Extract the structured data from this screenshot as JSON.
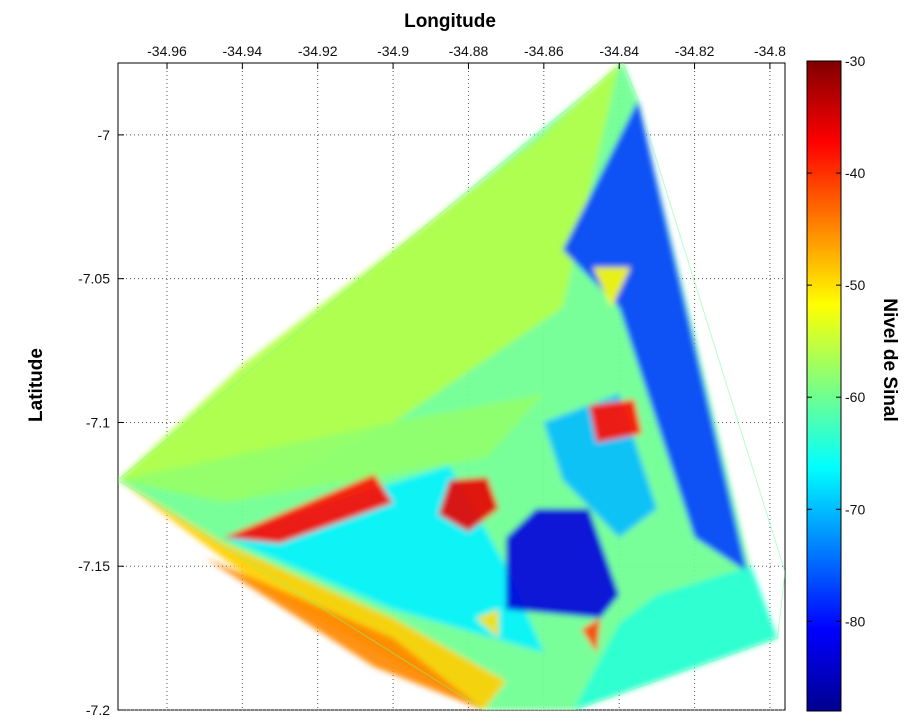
{
  "chart_data": {
    "type": "heatmap",
    "title": "",
    "xlabel": "Longitude",
    "ylabel": "Latitude",
    "colorbar_label": "Nivel de Sinal",
    "xlim": [
      -34.973,
      -34.796
    ],
    "ylim": [
      -7.2,
      -6.975
    ],
    "xticks": [
      -34.96,
      -34.94,
      -34.92,
      -34.9,
      -34.88,
      -34.86,
      -34.84,
      -34.82,
      -34.8
    ],
    "xtick_labels": [
      "-34.96",
      "-34.94",
      "-34.92",
      "-34.9",
      "-34.88",
      "-34.86",
      "-34.84",
      "-34.82",
      "-34.8"
    ],
    "yticks": [
      -7.0,
      -7.05,
      -7.1,
      -7.15,
      -7.2
    ],
    "ytick_labels": [
      "-7",
      "-7.05",
      "-7.1",
      "-7.15",
      "-7.2"
    ],
    "colorbar_range": [
      -88,
      -30
    ],
    "colorbar_ticks": [
      -30,
      -40,
      -50,
      -60,
      -70,
      -80
    ],
    "colorbar_tick_labels": [
      "-30",
      "-40",
      "-50",
      "-60",
      "-70",
      "-80"
    ],
    "colormap": "jet",
    "grid": true,
    "outline": [
      [
        -34.973,
        -7.12
      ],
      [
        -34.839,
        -6.975
      ],
      [
        -34.835,
        -6.988
      ],
      [
        -34.796,
        -7.152
      ],
      [
        -34.798,
        -7.175
      ],
      [
        -34.852,
        -7.2
      ],
      [
        -34.876,
        -7.2
      ]
    ],
    "regions": [
      {
        "points": [
          [
            -34.973,
            -7.12
          ],
          [
            -34.839,
            -6.975
          ],
          [
            -34.835,
            -6.988
          ],
          [
            -34.805,
            -7.152
          ],
          [
            -34.798,
            -7.175
          ],
          [
            -34.852,
            -7.2
          ],
          [
            -34.876,
            -7.2
          ]
        ],
        "value": -60
      },
      {
        "points": [
          [
            -34.973,
            -7.12
          ],
          [
            -34.94,
            -7.08
          ],
          [
            -34.9,
            -7.04
          ],
          [
            -34.86,
            -7.0
          ],
          [
            -34.84,
            -6.975
          ],
          [
            -34.855,
            -7.06
          ],
          [
            -34.9,
            -7.1
          ],
          [
            -34.94,
            -7.127
          ]
        ],
        "value": -56
      },
      {
        "points": [
          [
            -34.973,
            -7.12
          ],
          [
            -34.945,
            -7.142
          ],
          [
            -34.9,
            -7.168
          ],
          [
            -34.87,
            -7.19
          ],
          [
            -34.876,
            -7.2
          ],
          [
            -34.935,
            -7.157
          ]
        ],
        "value": -49
      },
      {
        "points": [
          [
            -34.95,
            -7.147
          ],
          [
            -34.9,
            -7.175
          ],
          [
            -34.876,
            -7.2
          ],
          [
            -34.905,
            -7.185
          ]
        ],
        "value": -45
      },
      {
        "points": [
          [
            -34.973,
            -7.12
          ],
          [
            -34.9,
            -7.1
          ],
          [
            -34.86,
            -7.09
          ],
          [
            -34.875,
            -7.112
          ],
          [
            -34.945,
            -7.128
          ]
        ],
        "value": -58
      },
      {
        "points": [
          [
            -34.945,
            -7.14
          ],
          [
            -34.905,
            -7.123
          ],
          [
            -34.885,
            -7.115
          ],
          [
            -34.87,
            -7.15
          ],
          [
            -34.86,
            -7.18
          ],
          [
            -34.9,
            -7.165
          ]
        ],
        "value": -67
      },
      {
        "points": [
          [
            -34.945,
            -7.14
          ],
          [
            -34.905,
            -7.118
          ],
          [
            -34.9,
            -7.128
          ],
          [
            -34.93,
            -7.142
          ]
        ],
        "value": -38
      },
      {
        "points": [
          [
            -34.885,
            -7.12
          ],
          [
            -34.875,
            -7.119
          ],
          [
            -34.872,
            -7.13
          ],
          [
            -34.88,
            -7.138
          ],
          [
            -34.888,
            -7.132
          ]
        ],
        "value": -36
      },
      {
        "points": [
          [
            -34.862,
            -7.13
          ],
          [
            -34.848,
            -7.13
          ],
          [
            -34.84,
            -7.16
          ],
          [
            -34.845,
            -7.168
          ],
          [
            -34.87,
            -7.165
          ],
          [
            -34.87,
            -7.14
          ]
        ],
        "value": -83
      },
      {
        "points": [
          [
            -34.86,
            -7.1
          ],
          [
            -34.84,
            -7.09
          ],
          [
            -34.83,
            -7.13
          ],
          [
            -34.84,
            -7.14
          ],
          [
            -34.855,
            -7.12
          ]
        ],
        "value": -70
      },
      {
        "points": [
          [
            -34.855,
            -7.04
          ],
          [
            -34.835,
            -6.988
          ],
          [
            -34.806,
            -7.152
          ],
          [
            -34.82,
            -7.14
          ],
          [
            -34.83,
            -7.1
          ],
          [
            -34.84,
            -7.06
          ]
        ],
        "value": -77
      },
      {
        "points": [
          [
            -34.83,
            -7.16
          ],
          [
            -34.805,
            -7.15
          ],
          [
            -34.798,
            -7.175
          ],
          [
            -34.852,
            -7.2
          ],
          [
            -34.84,
            -7.17
          ]
        ],
        "value": -64
      },
      {
        "points": [
          [
            -34.848,
            -7.094
          ],
          [
            -34.836,
            -7.092
          ],
          [
            -34.834,
            -7.104
          ],
          [
            -34.846,
            -7.107
          ]
        ],
        "value": -38
      },
      {
        "points": [
          [
            -34.847,
            -7.046
          ],
          [
            -34.837,
            -7.046
          ],
          [
            -34.842,
            -7.06
          ]
        ],
        "value": -52
      },
      {
        "points": [
          [
            -34.85,
            -7.172
          ],
          [
            -34.845,
            -7.168
          ],
          [
            -34.846,
            -7.18
          ]
        ],
        "value": -41
      },
      {
        "points": [
          [
            -34.878,
            -7.168
          ],
          [
            -34.872,
            -7.165
          ],
          [
            -34.872,
            -7.175
          ]
        ],
        "value": -50
      }
    ]
  }
}
